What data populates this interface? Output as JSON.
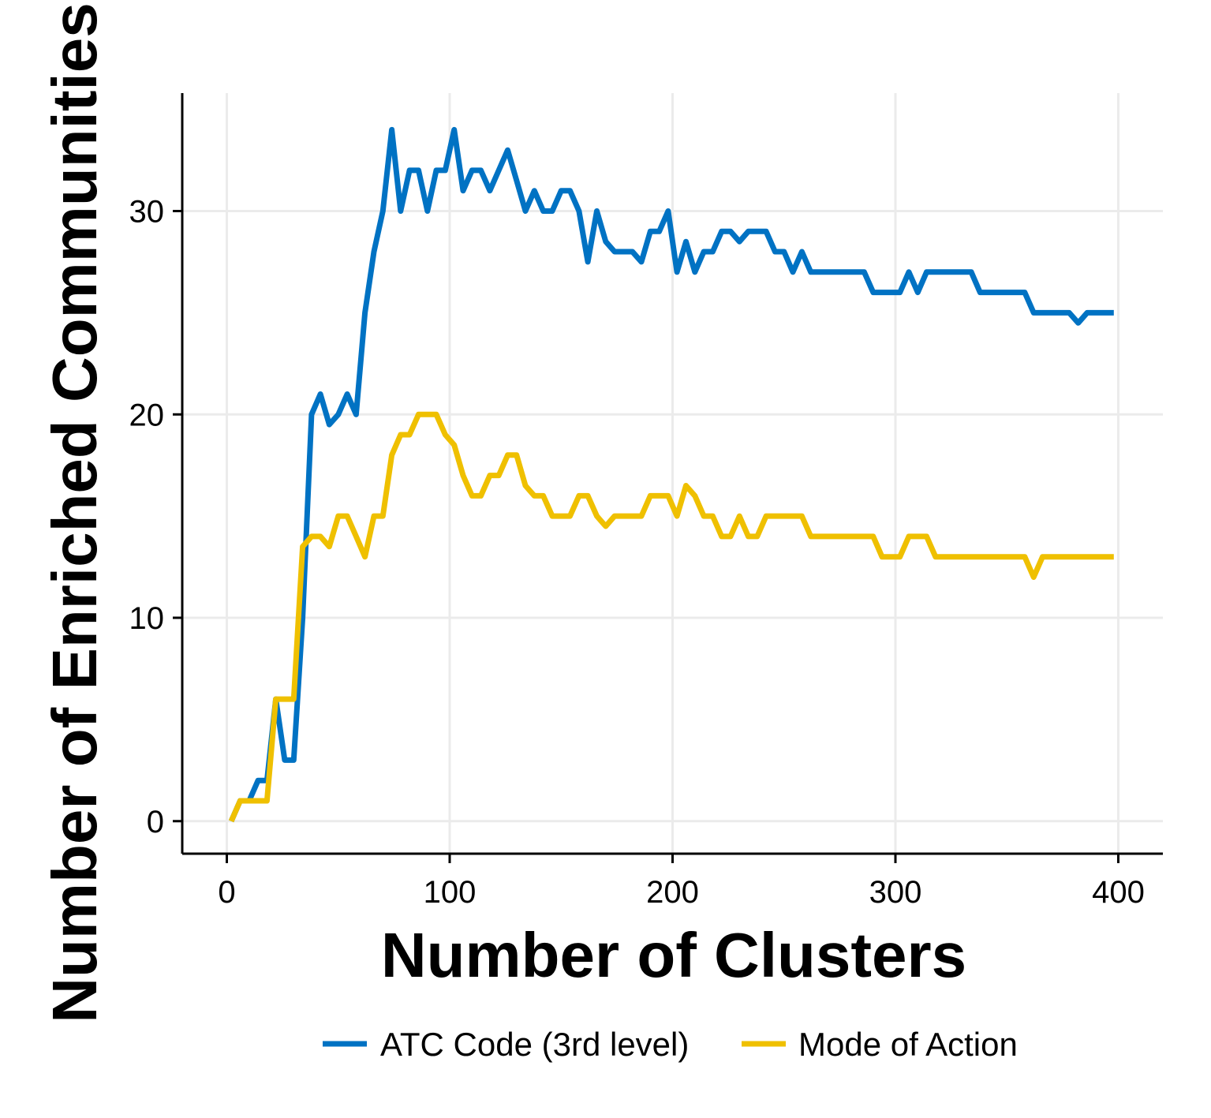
{
  "chart_data": {
    "type": "line",
    "title": "",
    "xlabel": "Number of Clusters",
    "ylabel": "Number of Enriched Communities",
    "xlim": [
      -20,
      420
    ],
    "ylim": [
      -1.6,
      35.8
    ],
    "xticks": [
      0,
      100,
      200,
      300,
      400
    ],
    "yticks": [
      0,
      10,
      20,
      30
    ],
    "xtick_labels": [
      "0",
      "100",
      "200",
      "300",
      "400"
    ],
    "ytick_labels": [
      "0",
      "10",
      "20",
      "30"
    ],
    "grid": true,
    "legend_position": "bottom",
    "series": [
      {
        "name": "ATC Code (3rd level)",
        "color": "#0072C3",
        "x": [
          2,
          6,
          10,
          14,
          18,
          22,
          26,
          30,
          34,
          38,
          42,
          46,
          50,
          54,
          58,
          62,
          66,
          70,
          74,
          78,
          82,
          86,
          90,
          94,
          98,
          102,
          106,
          110,
          114,
          118,
          122,
          126,
          130,
          134,
          138,
          142,
          146,
          150,
          154,
          158,
          162,
          166,
          170,
          174,
          178,
          182,
          186,
          190,
          194,
          198,
          202,
          206,
          210,
          214,
          218,
          222,
          226,
          230,
          234,
          238,
          242,
          246,
          250,
          254,
          258,
          262,
          266,
          270,
          274,
          278,
          282,
          286,
          290,
          294,
          298,
          302,
          306,
          310,
          314,
          318,
          322,
          326,
          330,
          334,
          338,
          342,
          346,
          350,
          354,
          358,
          362,
          366,
          370,
          374,
          378,
          382,
          386,
          390,
          394,
          398
        ],
        "y": [
          0,
          1,
          1,
          2,
          2,
          6,
          3,
          3,
          10,
          20,
          21,
          19.5,
          20,
          21,
          20,
          25,
          28,
          30,
          34,
          30,
          32,
          32,
          30,
          32,
          32,
          34,
          31,
          32,
          32,
          31,
          32,
          33,
          31.5,
          30,
          31,
          30,
          30,
          31,
          31,
          30,
          27.5,
          30,
          28.5,
          28,
          28,
          28,
          27.5,
          29,
          29,
          30,
          27,
          28.5,
          27,
          28,
          28,
          29,
          29,
          28.5,
          29,
          29,
          29,
          28,
          28,
          27,
          28,
          27,
          27,
          27,
          27,
          27,
          27,
          27,
          26,
          26,
          26,
          26,
          27,
          26,
          27,
          27,
          27,
          27,
          27,
          27,
          26,
          26,
          26,
          26,
          26,
          26,
          25,
          25,
          25,
          25,
          25,
          24.5,
          25,
          25,
          25,
          25
        ]
      },
      {
        "name": "Mode of Action",
        "color": "#EFC000",
        "x": [
          2,
          6,
          10,
          14,
          18,
          22,
          26,
          30,
          34,
          38,
          42,
          46,
          50,
          54,
          58,
          62,
          66,
          70,
          74,
          78,
          82,
          86,
          90,
          94,
          98,
          102,
          106,
          110,
          114,
          118,
          122,
          126,
          130,
          134,
          138,
          142,
          146,
          150,
          154,
          158,
          162,
          166,
          170,
          174,
          178,
          182,
          186,
          190,
          194,
          198,
          202,
          206,
          210,
          214,
          218,
          222,
          226,
          230,
          234,
          238,
          242,
          246,
          250,
          254,
          258,
          262,
          266,
          270,
          274,
          278,
          282,
          286,
          290,
          294,
          298,
          302,
          306,
          310,
          314,
          318,
          322,
          326,
          330,
          334,
          338,
          342,
          346,
          350,
          354,
          358,
          362,
          366,
          370,
          374,
          378,
          382,
          386,
          390,
          394,
          398
        ],
        "y": [
          0,
          1,
          1,
          1,
          1,
          6,
          6,
          6,
          13.5,
          14,
          14,
          13.5,
          15,
          15,
          14,
          13,
          15,
          15,
          18,
          19,
          19,
          20,
          20,
          20,
          19,
          18.5,
          17,
          16,
          16,
          17,
          17,
          18,
          18,
          16.5,
          16,
          16,
          15,
          15,
          15,
          16,
          16,
          15,
          14.5,
          15,
          15,
          15,
          15,
          16,
          16,
          16,
          15,
          16.5,
          16,
          15,
          15,
          14,
          14,
          15,
          14,
          14,
          15,
          15,
          15,
          15,
          15,
          14,
          14,
          14,
          14,
          14,
          14,
          14,
          14,
          13,
          13,
          13,
          14,
          14,
          14,
          13,
          13,
          13,
          13,
          13,
          13,
          13,
          13,
          13,
          13,
          13,
          12,
          13,
          13,
          13,
          13,
          13,
          13,
          13,
          13,
          13
        ]
      }
    ]
  }
}
